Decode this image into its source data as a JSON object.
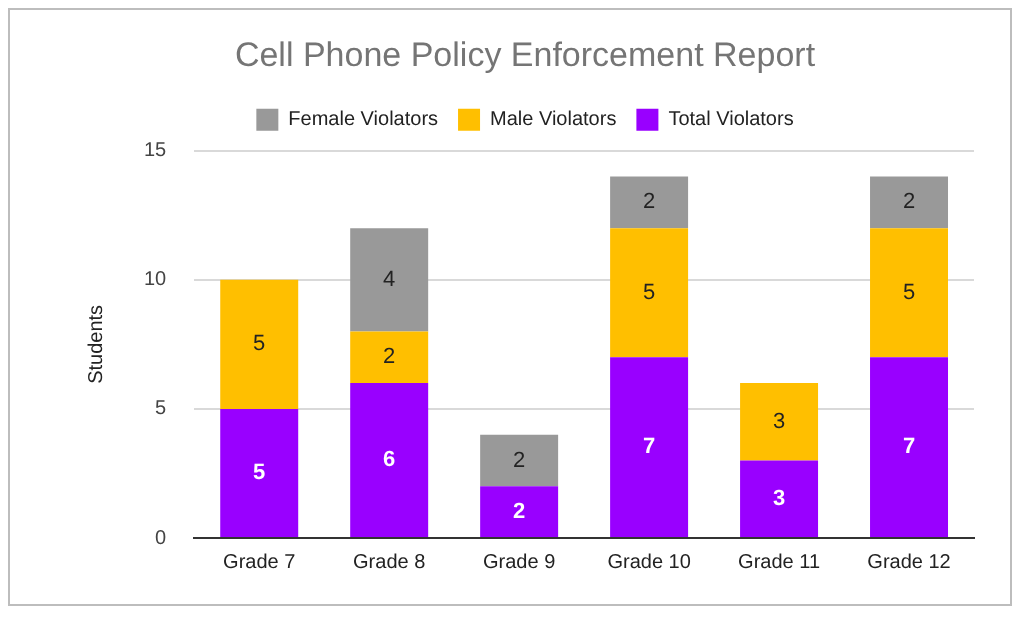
{
  "chart_data": {
    "type": "bar",
    "title": "Cell Phone Policy Enforcement Report",
    "ylabel": "Students",
    "categories": [
      "Grade 7",
      "Grade 8",
      "Grade 9",
      "Grade 10",
      "Grade 11",
      "Grade 12"
    ],
    "stacked": true,
    "series": [
      {
        "name": "Total Violators",
        "color": "#9900ff",
        "values": [
          5,
          6,
          2,
          7,
          3,
          7
        ]
      },
      {
        "name": "Male Violators",
        "color": "#ffbf00",
        "values": [
          5,
          2,
          null,
          5,
          3,
          5
        ]
      },
      {
        "name": "Female Violators",
        "color": "#999999",
        "values": [
          null,
          4,
          2,
          2,
          null,
          2
        ]
      }
    ],
    "ylim": [
      0,
      15
    ],
    "yticks": [
      0,
      5,
      10,
      15
    ],
    "grid": "y",
    "legend": "top",
    "data_labels": true
  }
}
